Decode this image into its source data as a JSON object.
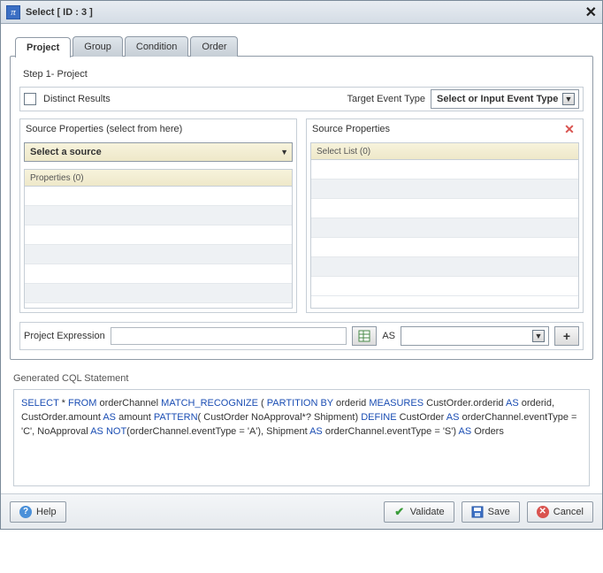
{
  "window": {
    "title": "Select [ ID : 3 ]"
  },
  "tabs": [
    {
      "label": "Project",
      "active": true
    },
    {
      "label": "Group",
      "active": false
    },
    {
      "label": "Condition",
      "active": false
    },
    {
      "label": "Order",
      "active": false
    }
  ],
  "step": {
    "label": "Step 1- Project"
  },
  "distinct_row": {
    "checkbox_checked": false,
    "label": "Distinct Results",
    "target_label": "Target Event Type",
    "target_value": "Select or Input Event Type"
  },
  "left_pane": {
    "header": "Source Properties (select from here)",
    "source_select": "Select a source",
    "grid_header": "Properties (0)",
    "row_count": 6
  },
  "right_pane": {
    "header": "Source Properties",
    "grid_header": "Select List (0)",
    "row_count": 7
  },
  "expr_row": {
    "label": "Project Expression",
    "as_label": "AS",
    "as_value": ""
  },
  "cql_label": "Generated CQL Statement",
  "cql": {
    "tokens": [
      {
        "t": "SELECT",
        "k": 1
      },
      {
        "t": " * "
      },
      {
        "t": "FROM",
        "k": 1
      },
      {
        "t": " orderChannel  "
      },
      {
        "t": "MATCH_RECOGNIZE",
        "k": 1
      },
      {
        "t": " ( "
      },
      {
        "t": "PARTITION BY",
        "k": 1
      },
      {
        "t": " orderid "
      },
      {
        "t": "MEASURES",
        "k": 1
      },
      {
        "t": " CustOrder.orderid "
      },
      {
        "t": "AS",
        "k": 1
      },
      {
        "t": " orderid, CustOrder.amount "
      },
      {
        "t": "AS",
        "k": 1
      },
      {
        "t": " amount "
      },
      {
        "t": "PATTERN",
        "k": 1
      },
      {
        "t": "( CustOrder NoApproval*? Shipment) "
      },
      {
        "t": "DEFINE",
        "k": 1
      },
      {
        "t": " CustOrder "
      },
      {
        "t": "AS",
        "k": 1
      },
      {
        "t": " orderChannel.eventType = 'C', NoApproval "
      },
      {
        "t": "AS",
        "k": 1
      },
      {
        "t": " "
      },
      {
        "t": "NOT",
        "k": 1
      },
      {
        "t": "(orderChannel.eventType = 'A'), Shipment "
      },
      {
        "t": "AS",
        "k": 1
      },
      {
        "t": " orderChannel.eventType = 'S') "
      },
      {
        "t": "AS",
        "k": 1
      },
      {
        "t": " Orders"
      }
    ]
  },
  "footer": {
    "help": "Help",
    "validate": "Validate",
    "save": "Save",
    "cancel": "Cancel"
  },
  "colors": {
    "keyword": "#1a4db3",
    "panel_border": "#8f9aa6",
    "soft_border": "#c6ced6"
  }
}
